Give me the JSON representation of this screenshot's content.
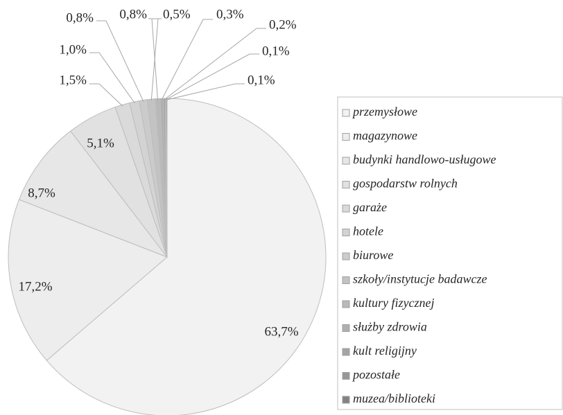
{
  "chart_data": {
    "type": "pie",
    "categories": [
      "przemysłowe",
      "magazynowe",
      "budynki handlowo-usługowe",
      "gospodarstw rolnych",
      "garaże",
      "hotele",
      "biurowe",
      "szkoły/instytucje badawcze",
      "kultury fizycznej",
      "służby zdrowia",
      "kult religijny",
      "pozostałe",
      "muzea/biblioteki"
    ],
    "values": [
      63.7,
      17.2,
      8.7,
      5.1,
      1.5,
      1.0,
      0.8,
      0.8,
      0.5,
      0.3,
      0.2,
      0.1,
      0.1
    ],
    "value_labels": [
      "63,7%",
      "17,2%",
      "8,7%",
      "5,1%",
      "1,5%",
      "1,0%",
      "0,8%",
      "0,8%",
      "0,5%",
      "0,3%",
      "0,2%",
      "0,1%",
      "0,1%"
    ],
    "colors": [
      "#f2f2f2",
      "#ededed",
      "#e7e7e7",
      "#e1e1e1",
      "#dadada",
      "#d3d3d3",
      "#cbcbcb",
      "#c3c3c3",
      "#b9b9b9",
      "#afafaf",
      "#a4a4a4",
      "#979797",
      "#828282"
    ],
    "legend": "right"
  }
}
